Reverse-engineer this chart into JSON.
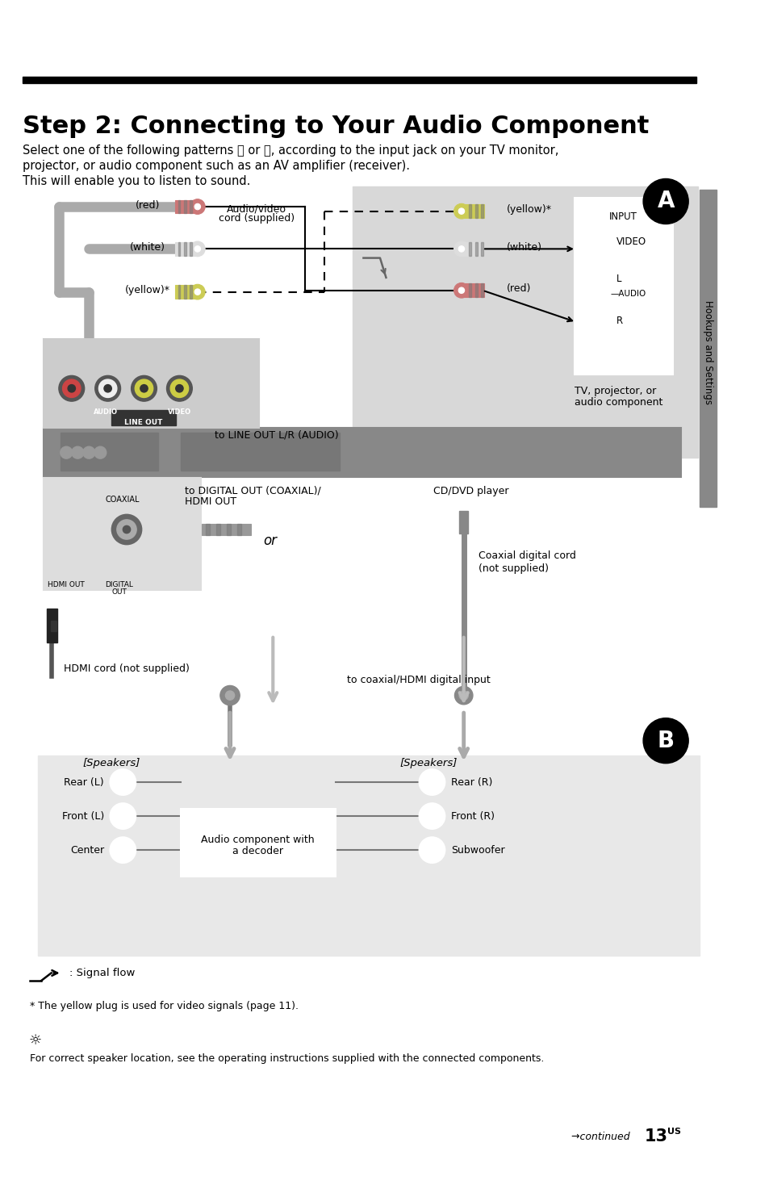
{
  "title": "Step 2: Connecting to Your Audio Component",
  "body_text_line1": "Select one of the following patterns Ⓐ or Ⓑ, according to the input jack on your TV monitor,",
  "body_text_line2": "projector, or audio component such as an AV amplifier (receiver).",
  "body_text_line3": "This will enable you to listen to sound.",
  "sidebar_text": "Hookups and Settings",
  "signal_flow_label": ": Signal flow",
  "footnote": "* The yellow plug is used for video signals (page 11).",
  "tip_text": "For correct speaker location, see the operating instructions supplied with the connected components.",
  "background_color": "#ffffff",
  "black": "#000000"
}
